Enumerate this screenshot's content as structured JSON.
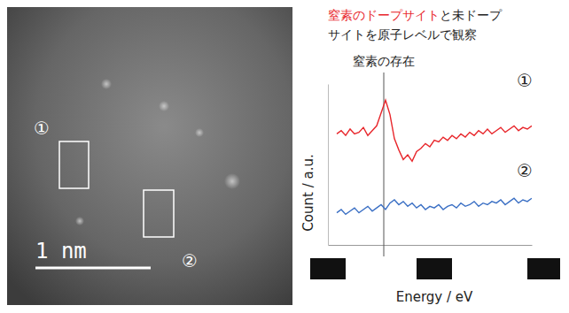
{
  "chart_data": {
    "type": "line",
    "title_lines": [
      [
        {
          "text": "窒素のドープサイト",
          "color": "#e8262b"
        },
        {
          "text": "と未ドープ",
          "color": "#222222"
        }
      ],
      [
        {
          "text": "サイトを原子レベルで観察",
          "color": "#222222"
        }
      ]
    ],
    "x_label": "Energy / eV",
    "y_label": "Count / a.u.",
    "annotations": [
      {
        "text": "窒素の存在",
        "x": 12.6
      }
    ],
    "tick_labels": false,
    "xlim": [
      0,
      46
    ],
    "ylim": [
      0,
      10
    ],
    "x": [
      2,
      3,
      4,
      5,
      6,
      7,
      8,
      9,
      10,
      11,
      12,
      13,
      14,
      15,
      16,
      17,
      18,
      19,
      20,
      21,
      22,
      23,
      24,
      25,
      26,
      27,
      28,
      29,
      30,
      31,
      32,
      33,
      34,
      35,
      36,
      37,
      38,
      39,
      40,
      41,
      42,
      43,
      44,
      45,
      46
    ],
    "series": [
      {
        "name": "①",
        "color": "#e8262b",
        "values": [
          6.9,
          7.1,
          6.8,
          7.2,
          6.9,
          7.0,
          7.3,
          6.8,
          7.1,
          7.4,
          8.2,
          9.0,
          8.1,
          6.6,
          5.9,
          5.3,
          5.6,
          5.2,
          5.8,
          6.0,
          6.3,
          6.1,
          6.5,
          6.4,
          6.7,
          6.5,
          6.8,
          6.6,
          6.9,
          6.7,
          7.0,
          6.8,
          7.1,
          6.9,
          7.2,
          6.9,
          7.1,
          7.3,
          7.0,
          7.2,
          7.4,
          7.1,
          7.3,
          7.2,
          7.4
        ]
      },
      {
        "name": "②",
        "color": "#3a6fc4",
        "values": [
          2.0,
          2.2,
          1.9,
          2.1,
          2.3,
          2.0,
          2.2,
          2.4,
          2.1,
          2.3,
          2.5,
          2.2,
          2.6,
          2.8,
          2.5,
          2.7,
          2.4,
          2.6,
          2.3,
          2.5,
          2.2,
          2.4,
          2.3,
          2.5,
          2.2,
          2.4,
          2.5,
          2.3,
          2.6,
          2.4,
          2.5,
          2.7,
          2.4,
          2.6,
          2.5,
          2.7,
          2.6,
          2.8,
          2.5,
          2.7,
          2.9,
          2.6,
          2.8,
          2.7,
          2.9
        ]
      }
    ]
  },
  "image": {
    "scale_bar": "1 nm",
    "regions": [
      {
        "label": "①"
      },
      {
        "label": "②"
      }
    ]
  }
}
